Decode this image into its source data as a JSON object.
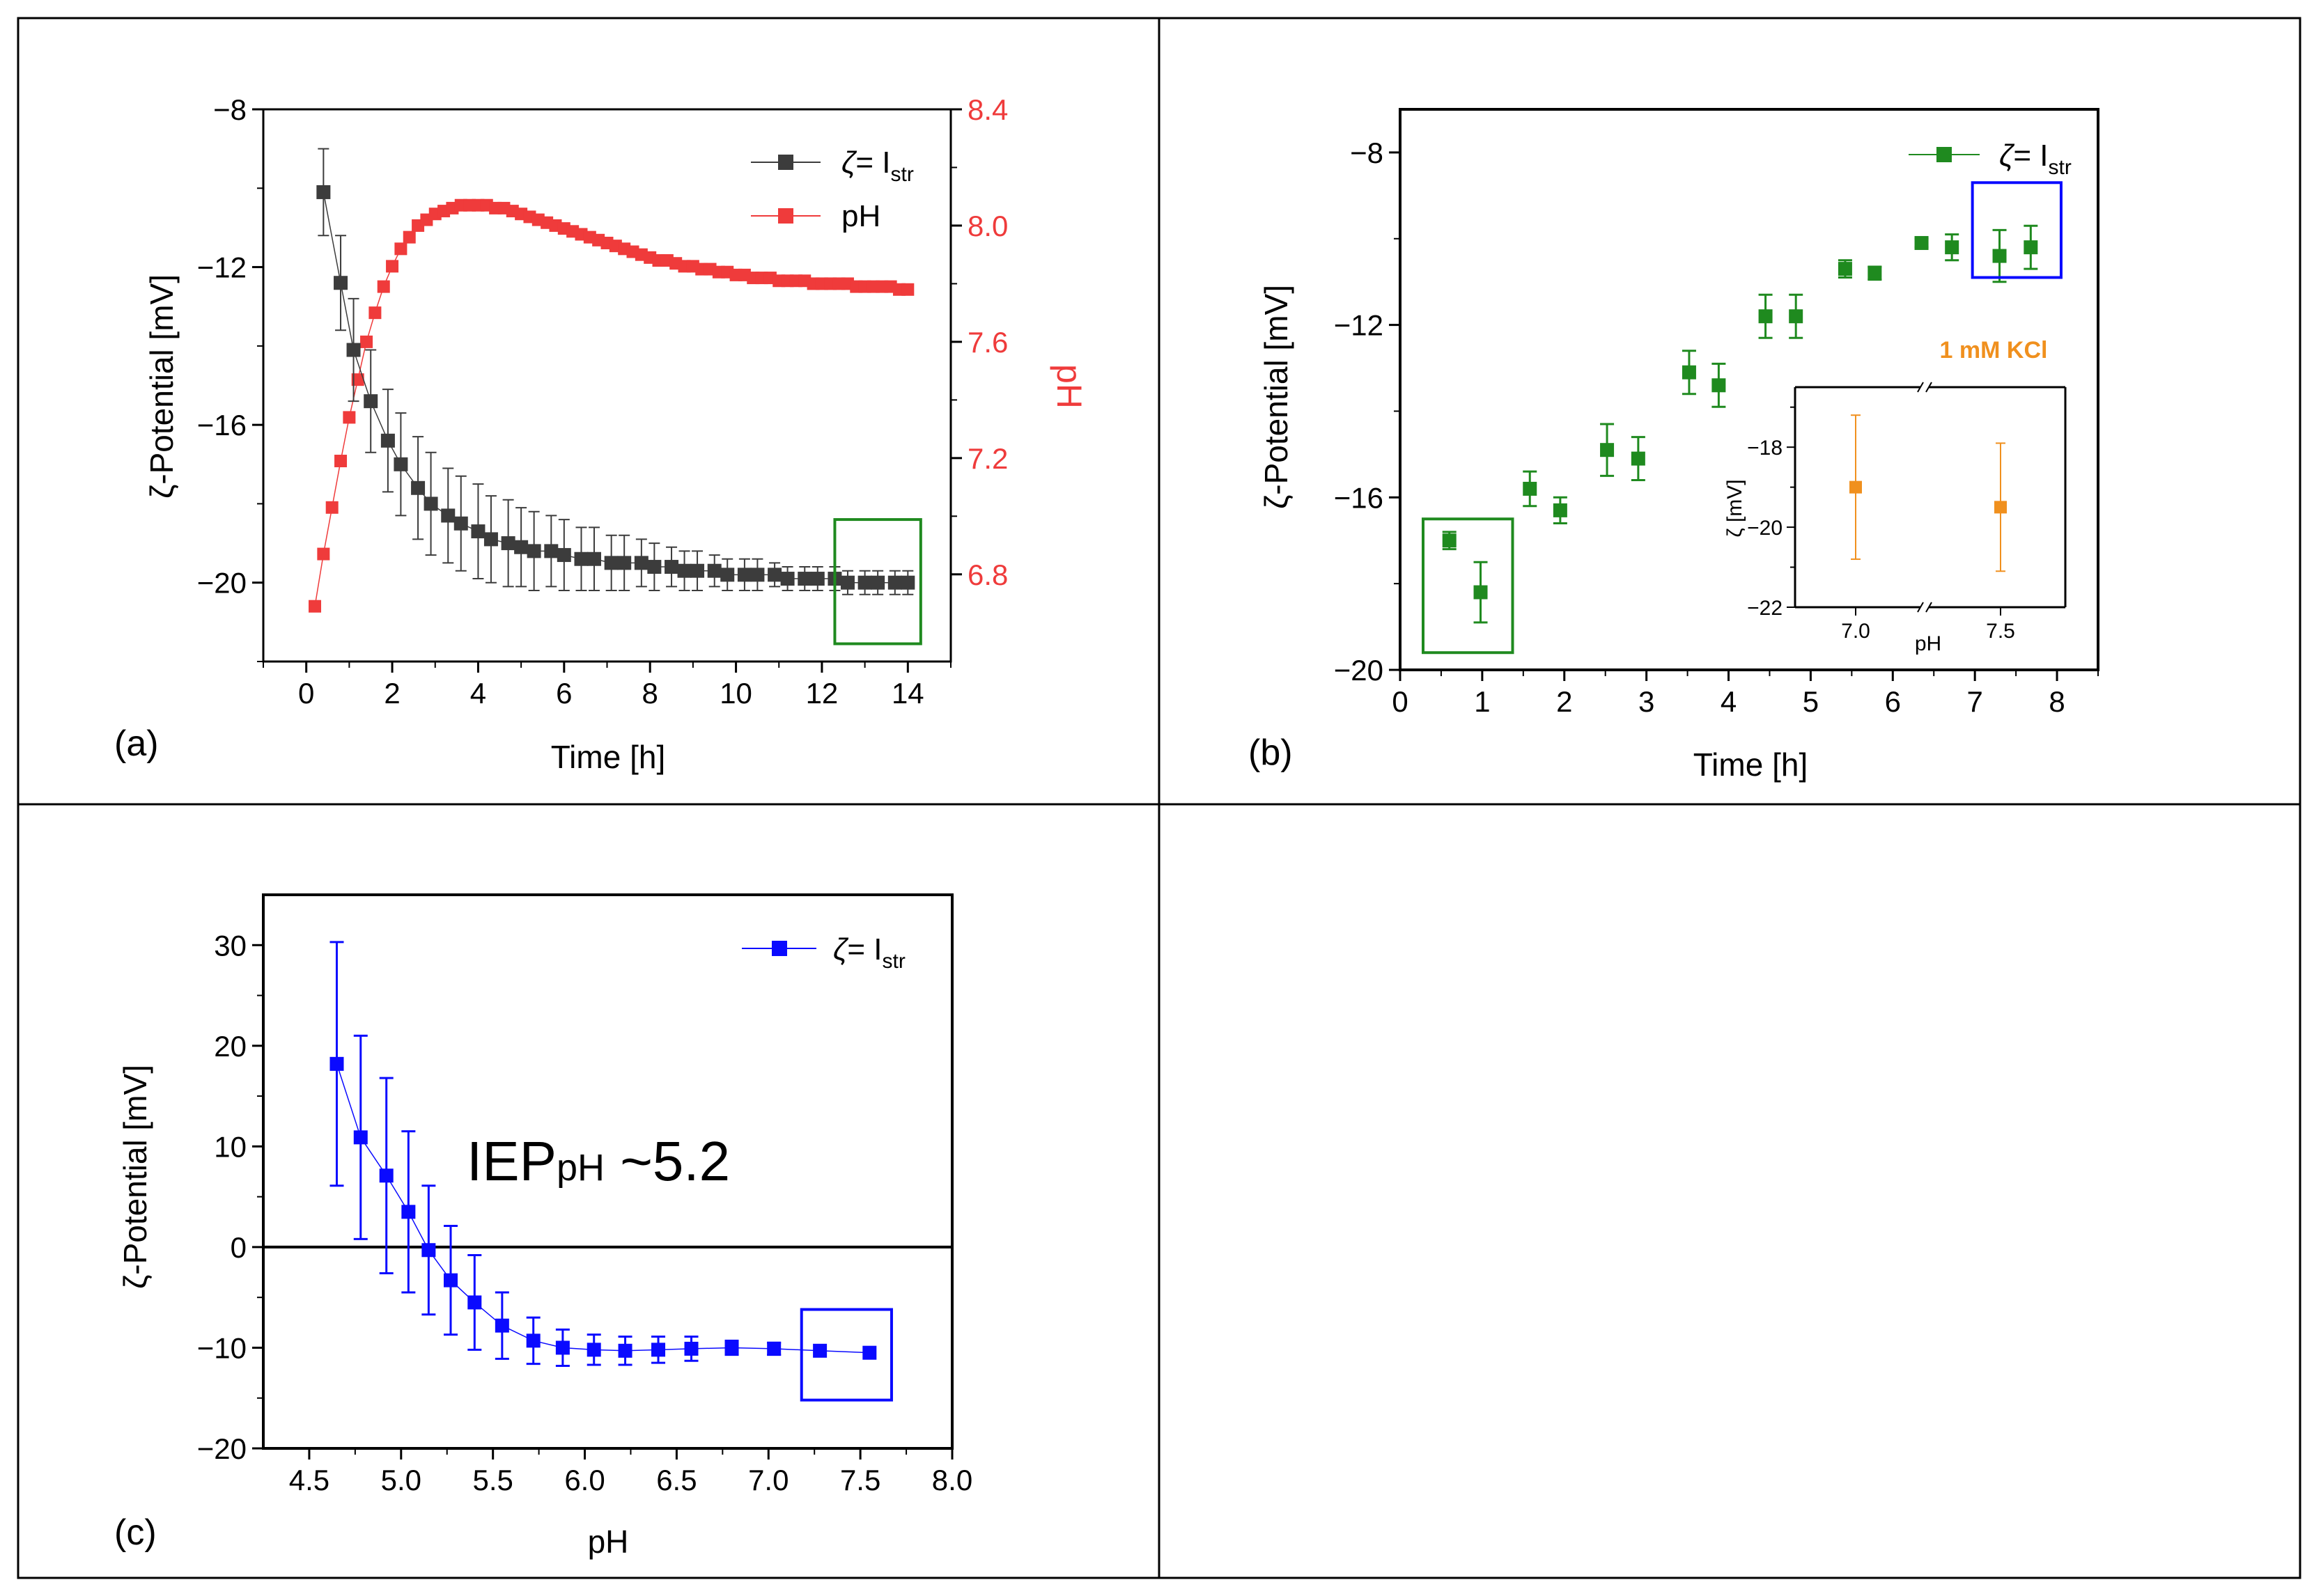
{
  "colors": {
    "gray_series": "#3c3c3c",
    "red_series": "#ef3b3b",
    "green_series": "#1f8a1f",
    "blue_series": "#0a0aff",
    "orange_series": "#f0901e",
    "zero_line": "#000000"
  },
  "chart_data": [
    {
      "id": "a",
      "type": "scatter",
      "panel_label": "(a)",
      "xlabel": "Time [h]",
      "ylabel": "ζ-Potential [mV]",
      "y2label": "pH",
      "xlim": [
        -1,
        15
      ],
      "ylim": [
        -22,
        -8
      ],
      "y2lim": [
        6.5,
        8.4
      ],
      "xticks": [
        "0",
        "2",
        "4",
        "6",
        "8",
        "10",
        "12",
        "14"
      ],
      "yticks": [
        "−8",
        "−12",
        "−16",
        "−20"
      ],
      "y2ticks": [
        "8.4",
        "8.0",
        "7.6",
        "7.2",
        "6.8"
      ],
      "legend": [
        {
          "symbol": "ζ",
          "text": "= I",
          "sub": "str"
        },
        {
          "symbol": "",
          "text": "pH",
          "sub": ""
        }
      ],
      "highlight_box": {
        "x0": 12.3,
        "x1": 14.3,
        "y0": -21.55,
        "y1": -18.4
      },
      "series": [
        {
          "name": "ζ= Istr",
          "axis": "left",
          "x": [
            0.4,
            0.8,
            1.1,
            1.5,
            1.9,
            2.2,
            2.6,
            2.9,
            3.3,
            3.6,
            4.0,
            4.3,
            4.7,
            5.0,
            5.3,
            5.7,
            6.0,
            6.4,
            6.7,
            7.1,
            7.4,
            7.8,
            8.1,
            8.5,
            8.8,
            9.1,
            9.5,
            9.8,
            10.2,
            10.5,
            10.9,
            11.2,
            11.6,
            11.9,
            12.3,
            12.6,
            13.0,
            13.3,
            13.7,
            14.0
          ],
          "y": [
            -10.1,
            -12.4,
            -14.1,
            -15.4,
            -16.4,
            -17.0,
            -17.6,
            -18.0,
            -18.3,
            -18.5,
            -18.7,
            -18.9,
            -19.0,
            -19.1,
            -19.2,
            -19.2,
            -19.3,
            -19.4,
            -19.4,
            -19.5,
            -19.5,
            -19.5,
            -19.6,
            -19.6,
            -19.7,
            -19.7,
            -19.7,
            -19.8,
            -19.8,
            -19.8,
            -19.8,
            -19.9,
            -19.9,
            -19.9,
            -19.9,
            -20.0,
            -20.0,
            -20.0,
            -20.0,
            -20.0
          ],
          "err": [
            1.1,
            1.2,
            1.3,
            1.3,
            1.3,
            1.3,
            1.3,
            1.3,
            1.2,
            1.2,
            1.2,
            1.1,
            1.1,
            1.0,
            1.0,
            0.9,
            0.9,
            0.8,
            0.8,
            0.7,
            0.7,
            0.6,
            0.6,
            0.5,
            0.5,
            0.5,
            0.4,
            0.4,
            0.4,
            0.4,
            0.3,
            0.3,
            0.3,
            0.3,
            0.3,
            0.3,
            0.3,
            0.3,
            0.3,
            0.3
          ]
        },
        {
          "name": "pH",
          "axis": "right",
          "x": [
            0.2,
            0.4,
            0.6,
            0.8,
            1.0,
            1.2,
            1.4,
            1.6,
            1.8,
            2.0,
            2.2,
            2.4,
            2.6,
            2.8,
            3.0,
            3.2,
            3.4,
            3.6,
            3.8,
            4.0,
            4.2,
            4.4,
            4.6,
            4.8,
            5.0,
            5.2,
            5.4,
            5.6,
            5.8,
            6.0,
            6.2,
            6.4,
            6.6,
            6.8,
            7.0,
            7.2,
            7.4,
            7.6,
            7.8,
            8.0,
            8.2,
            8.4,
            8.6,
            8.8,
            9.0,
            9.2,
            9.4,
            9.6,
            9.8,
            10.0,
            10.2,
            10.4,
            10.6,
            10.8,
            11.0,
            11.2,
            11.4,
            11.6,
            11.8,
            12.0,
            12.2,
            12.4,
            12.6,
            12.8,
            13.0,
            13.2,
            13.4,
            13.6,
            13.8,
            14.0
          ],
          "y": [
            6.69,
            6.87,
            7.03,
            7.19,
            7.34,
            7.47,
            7.6,
            7.7,
            7.79,
            7.86,
            7.92,
            7.96,
            8.0,
            8.02,
            8.04,
            8.05,
            8.06,
            8.07,
            8.07,
            8.07,
            8.07,
            8.06,
            8.06,
            8.05,
            8.04,
            8.03,
            8.02,
            8.01,
            8.0,
            7.99,
            7.98,
            7.97,
            7.96,
            7.95,
            7.94,
            7.93,
            7.92,
            7.91,
            7.9,
            7.89,
            7.88,
            7.88,
            7.87,
            7.86,
            7.86,
            7.85,
            7.85,
            7.84,
            7.84,
            7.83,
            7.83,
            7.82,
            7.82,
            7.82,
            7.81,
            7.81,
            7.81,
            7.81,
            7.8,
            7.8,
            7.8,
            7.8,
            7.8,
            7.79,
            7.79,
            7.79,
            7.79,
            7.79,
            7.78,
            7.78
          ]
        }
      ]
    },
    {
      "id": "b",
      "type": "scatter",
      "panel_label": "(b)",
      "xlabel": "Time [h]",
      "ylabel": "ζ-Potential [mV]",
      "xlim": [
        0,
        8.5
      ],
      "ylim": [
        -20,
        -7
      ],
      "xticks": [
        "0",
        "1",
        "2",
        "3",
        "4",
        "5",
        "6",
        "7",
        "8"
      ],
      "yticks": [
        "−8",
        "−12",
        "−16",
        "−20"
      ],
      "legend": [
        {
          "symbol": "ζ",
          "text": "= I",
          "sub": "str"
        }
      ],
      "green_box": {
        "x0": 0.28,
        "x1": 1.37,
        "y0": -19.6,
        "y1": -16.5
      },
      "blue_box": {
        "x0": 6.97,
        "x1": 8.05,
        "y0": -10.9,
        "y1": -8.7
      },
      "series": [
        {
          "name": "ζ= Istr",
          "x": [
            0.6,
            0.98,
            1.58,
            1.95,
            2.52,
            2.9,
            3.52,
            3.88,
            4.45,
            4.82,
            5.42,
            5.78,
            6.35,
            6.72,
            7.3,
            7.68
          ],
          "y": [
            -17.0,
            -18.2,
            -15.8,
            -16.3,
            -14.9,
            -15.1,
            -13.1,
            -13.4,
            -11.8,
            -11.8,
            -10.7,
            -10.8,
            -10.1,
            -10.2,
            -10.4,
            -10.2
          ],
          "err": [
            0.2,
            0.7,
            0.4,
            0.3,
            0.6,
            0.5,
            0.5,
            0.5,
            0.5,
            0.5,
            0.2,
            0.15,
            0.1,
            0.3,
            0.6,
            0.5
          ]
        }
      ],
      "inset": {
        "title": "1 mM KCl",
        "xlabel": "pH",
        "ylabel": "ζ [mV]",
        "xticks": [
          "7.0",
          "7.5"
        ],
        "yticks": [
          "−18",
          "−20",
          "−22"
        ],
        "ylim": [
          -22,
          -16.5
        ],
        "x": [
          7.0,
          7.5
        ],
        "y": [
          -19.0,
          -19.5
        ],
        "err": [
          1.8,
          1.6
        ]
      }
    },
    {
      "id": "c",
      "type": "scatter",
      "panel_label": "(c)",
      "xlabel": "pH",
      "ylabel": "ζ-Potential [mV]",
      "xlim": [
        4.25,
        8.0
      ],
      "ylim": [
        -20,
        35
      ],
      "xticks": [
        "4.5",
        "5.0",
        "5.5",
        "6.0",
        "6.5",
        "7.0",
        "7.5",
        "8.0"
      ],
      "yticks": [
        "30",
        "20",
        "10",
        "0",
        "−10",
        "−20"
      ],
      "legend": [
        {
          "symbol": "ζ",
          "text": "= I",
          "sub": "str"
        }
      ],
      "annotation": {
        "main": "IEP",
        "sub": "pH",
        "rest": " ~5.2"
      },
      "blue_box": {
        "x0": 7.18,
        "x1": 7.67,
        "y0": -15.2,
        "y1": -6.2
      },
      "series": [
        {
          "name": "ζ= Istr",
          "x": [
            4.65,
            4.78,
            4.92,
            5.04,
            5.15,
            5.27,
            5.4,
            5.55,
            5.72,
            5.88,
            6.05,
            6.22,
            6.4,
            6.58,
            6.8,
            7.03,
            7.28,
            7.55
          ],
          "y": [
            18.2,
            10.9,
            7.1,
            3.5,
            -0.3,
            -3.3,
            -5.5,
            -7.8,
            -9.3,
            -10.0,
            -10.2,
            -10.3,
            -10.2,
            -10.1,
            -10.0,
            -10.1,
            -10.3,
            -10.5
          ],
          "err": [
            12.1,
            10.1,
            9.7,
            8.0,
            6.4,
            5.4,
            4.7,
            3.3,
            2.3,
            1.8,
            1.5,
            1.4,
            1.3,
            1.2,
            0.7,
            0.6,
            0,
            0
          ]
        }
      ]
    }
  ]
}
